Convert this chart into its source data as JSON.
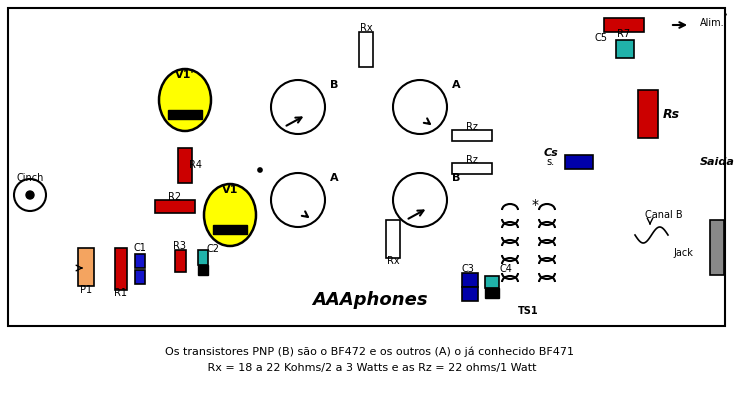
{
  "title": "AAAphones",
  "text_line1": "Os transistores PNP (B) são o BF472 e os outros (A) o já conhecido BF471",
  "text_line2": " Rx = 18 a 22 Kohms/2 a 3 Watts e as Rz = 22 ohms/1 Watt",
  "bg_color": "#ffffff",
  "fig_width": 7.37,
  "fig_height": 4.13,
  "dpi": 100
}
